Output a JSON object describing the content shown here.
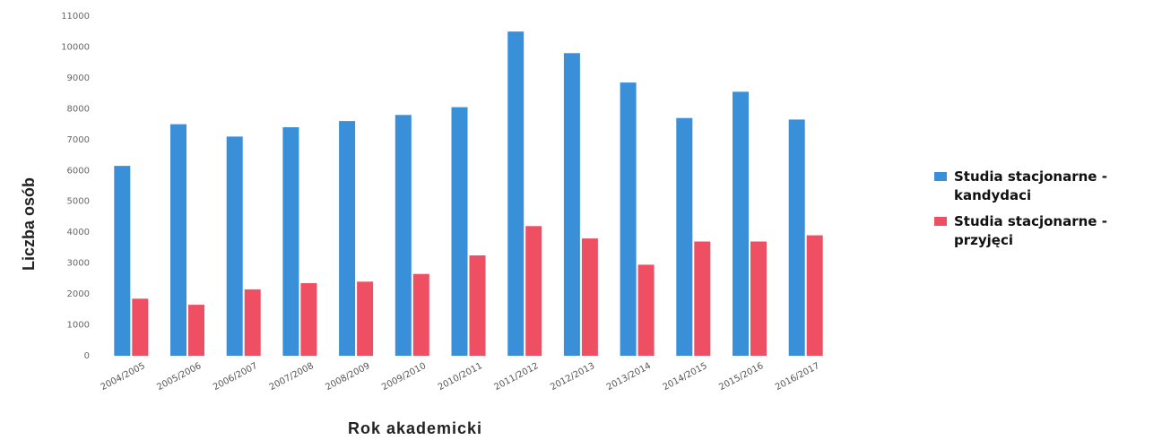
{
  "chart_data": {
    "type": "bar",
    "title": "",
    "xlabel": "Rok akademicki",
    "ylabel": "Liczba osób",
    "ylim": [
      0,
      11000
    ],
    "yticks": [
      0,
      1000,
      2000,
      3000,
      4000,
      5000,
      6000,
      7000,
      8000,
      9000,
      10000,
      11000
    ],
    "ytick_labels": [
      "0",
      "1000",
      "2000",
      "3000",
      "4000",
      "5000",
      "6000",
      "7000",
      "8000",
      "9000",
      "10000",
      "11000"
    ],
    "categories": [
      "2004/2005",
      "2005/2006",
      "2006/2007",
      "2007/2008",
      "2008/2009",
      "2009/2010",
      "2010/2011",
      "2011/2012",
      "2012/2013",
      "2013/2014",
      "2014/2015",
      "2015/2016",
      "2016/2017"
    ],
    "series": [
      {
        "name": "Studia stacjonarne - kandydaci",
        "color": "#3a8fd9",
        "values": [
          6150,
          7500,
          7100,
          7400,
          7600,
          7800,
          8050,
          10500,
          9800,
          8850,
          7700,
          8550,
          7650
        ]
      },
      {
        "name": "Studia stacjonarne - przyjęci",
        "color": "#ee4f63",
        "values": [
          1850,
          1650,
          2150,
          2350,
          2400,
          2650,
          3250,
          4200,
          3800,
          2950,
          3700,
          3700,
          3900
        ]
      }
    ],
    "grid": false,
    "legend_position": "right"
  }
}
